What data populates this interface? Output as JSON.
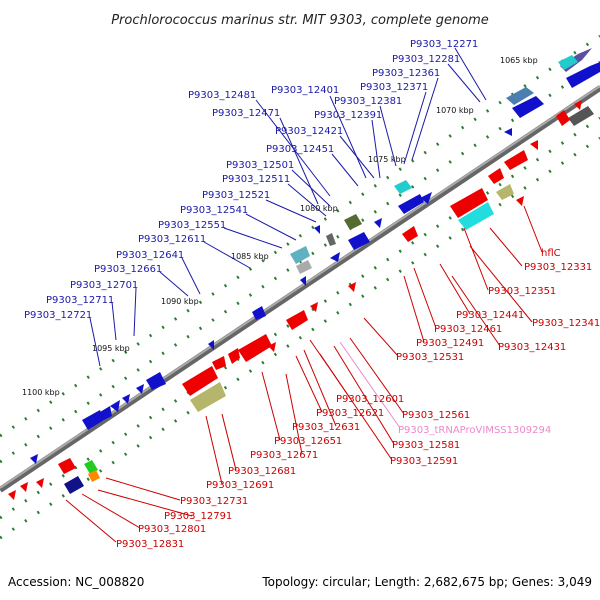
{
  "title": "Prochlorococcus marinus str. MIT 9303, complete genome",
  "accession_label": "Accession: NC_008820",
  "summary_label": "Topology: circular; Length: 2,682,675 bp; Genes: 3,049",
  "colors": {
    "backbone": "#888888",
    "top_labels": "#1a1aaa",
    "bottom_labels": "#cc0000",
    "rna_label": "#ee88cc",
    "tick_dots": "#2e7d32"
  },
  "kbp_labels": [
    "1065 kbp",
    "1070 kbp",
    "1075 kbp",
    "1080 kbp",
    "1085 kbp",
    "1090 kbp",
    "1095 kbp",
    "1100 kbp"
  ],
  "top_labels": [
    "P9303_12271",
    "P9303_12281",
    "P9303_12361",
    "P9303_12371",
    "P9303_12401",
    "P9303_12381",
    "P9303_12481",
    "P9303_12391",
    "P9303_12471",
    "P9303_12421",
    "P9303_12451",
    "P9303_12501",
    "P9303_12511",
    "P9303_12521",
    "P9303_12541",
    "P9303_12551",
    "P9303_12611",
    "P9303_12641",
    "P9303_12661",
    "P9303_12701",
    "P9303_12711",
    "P9303_12721"
  ],
  "bottom_labels": [
    "hflC",
    "P9303_12331",
    "P9303_12351",
    "P9303_12341",
    "P9303_12441",
    "P9303_12461",
    "P9303_12431",
    "P9303_12491",
    "P9303_12531",
    "P9303_12601",
    "P9303_12561",
    "P9303_12621",
    "P9303_12631",
    "P9303_12581",
    "P9303_12651",
    "P9303_12591",
    "P9303_12671",
    "P9303_12681",
    "P9303_12691",
    "P9303_12731",
    "P9303_12791",
    "P9303_12801",
    "P9303_12831"
  ],
  "rna_labels": [
    "P9303_tRNAProVIMSS1309294"
  ]
}
